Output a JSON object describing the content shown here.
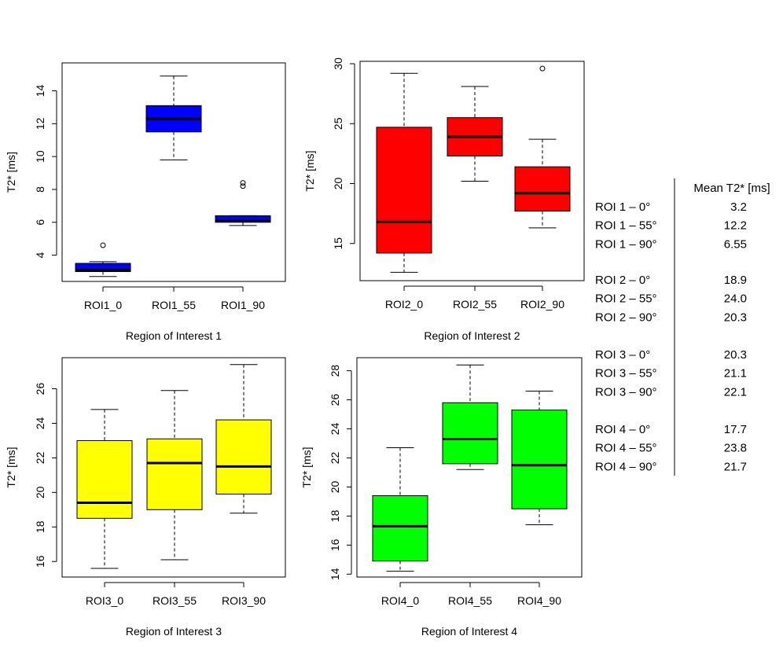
{
  "chart_data": [
    {
      "type": "box",
      "xlabel": "Region of Interest 1",
      "ylabel": "T2* [ms]",
      "ylim": [
        2.4,
        15.7
      ],
      "yticks": [
        4,
        6,
        8,
        10,
        12,
        14
      ],
      "color": "#0000ff",
      "categories": [
        "ROI1_0",
        "ROI1_55",
        "ROI1_90"
      ],
      "boxes": [
        {
          "min": 2.7,
          "q1": 3.0,
          "median": 3.1,
          "q3": 3.5,
          "max": 3.6,
          "outliers": [
            4.6
          ]
        },
        {
          "min": 9.8,
          "q1": 11.5,
          "median": 12.3,
          "q3": 13.1,
          "max": 14.9,
          "outliers": []
        },
        {
          "min": 5.8,
          "q1": 6.0,
          "median": 6.1,
          "q3": 6.4,
          "max": 6.4,
          "outliers": [
            8.2,
            8.4
          ]
        }
      ]
    },
    {
      "type": "box",
      "xlabel": "Region of Interest 2",
      "ylabel": "T2* [ms]",
      "ylim": [
        11.9,
        30.2
      ],
      "yticks": [
        15,
        20,
        25,
        30
      ],
      "color": "#ff0000",
      "categories": [
        "ROI2_0",
        "ROI2_55",
        "ROI2_90"
      ],
      "boxes": [
        {
          "min": 12.6,
          "q1": 14.2,
          "median": 16.8,
          "q3": 24.7,
          "max": 29.2,
          "outliers": []
        },
        {
          "min": 20.2,
          "q1": 22.3,
          "median": 23.9,
          "q3": 25.5,
          "max": 28.1,
          "outliers": []
        },
        {
          "min": 16.3,
          "q1": 17.7,
          "median": 19.2,
          "q3": 21.4,
          "max": 23.7,
          "outliers": [
            29.6
          ]
        }
      ]
    },
    {
      "type": "box",
      "xlabel": "Region of Interest 3",
      "ylabel": "T2* [ms]",
      "ylim": [
        15.1,
        27.8
      ],
      "yticks": [
        16,
        18,
        20,
        22,
        24,
        26
      ],
      "color": "#ffff00",
      "categories": [
        "ROI3_0",
        "ROI3_55",
        "ROI3_90"
      ],
      "boxes": [
        {
          "min": 15.6,
          "q1": 18.5,
          "median": 19.4,
          "q3": 23.0,
          "max": 24.8,
          "outliers": []
        },
        {
          "min": 16.1,
          "q1": 19.0,
          "median": 21.7,
          "q3": 23.1,
          "max": 25.9,
          "outliers": []
        },
        {
          "min": 18.8,
          "q1": 19.9,
          "median": 21.5,
          "q3": 24.2,
          "max": 27.4,
          "outliers": []
        }
      ]
    },
    {
      "type": "box",
      "xlabel": "Region of Interest 4",
      "ylabel": "T2* [ms]",
      "ylim": [
        13.8,
        28.9
      ],
      "yticks": [
        14,
        16,
        18,
        20,
        22,
        24,
        26,
        28
      ],
      "color": "#00ff00",
      "categories": [
        "ROI4_0",
        "ROI4_55",
        "ROI4_90"
      ],
      "boxes": [
        {
          "min": 14.2,
          "q1": 14.9,
          "median": 17.3,
          "q3": 19.4,
          "max": 22.7,
          "outliers": []
        },
        {
          "min": 21.2,
          "q1": 21.6,
          "median": 23.3,
          "q3": 25.8,
          "max": 28.4,
          "outliers": []
        },
        {
          "min": 17.4,
          "q1": 18.5,
          "median": 21.5,
          "q3": 25.3,
          "max": 26.6,
          "outliers": []
        }
      ]
    }
  ],
  "summary_table": {
    "header": "Mean T2* [ms]",
    "groups": [
      [
        {
          "label": "ROI 1 – 0°",
          "value": "3.2"
        },
        {
          "label": "ROI 1 – 55°",
          "value": "12.2"
        },
        {
          "label": "ROI 1 – 90°",
          "value": "6.55"
        }
      ],
      [
        {
          "label": "ROI 2 – 0°",
          "value": "18.9"
        },
        {
          "label": "ROI 2 – 55°",
          "value": "24.0"
        },
        {
          "label": "ROI 2 – 90°",
          "value": "20.3"
        }
      ],
      [
        {
          "label": "ROI 3 – 0°",
          "value": "20.3"
        },
        {
          "label": "ROI 3 – 55°",
          "value": "21.1"
        },
        {
          "label": "ROI 3 – 90°",
          "value": "22.1"
        }
      ],
      [
        {
          "label": "ROI 4 – 0°",
          "value": "17.7"
        },
        {
          "label": "ROI 4 – 55°",
          "value": "23.8"
        },
        {
          "label": "ROI 4 – 90°",
          "value": "21.7"
        }
      ]
    ]
  }
}
